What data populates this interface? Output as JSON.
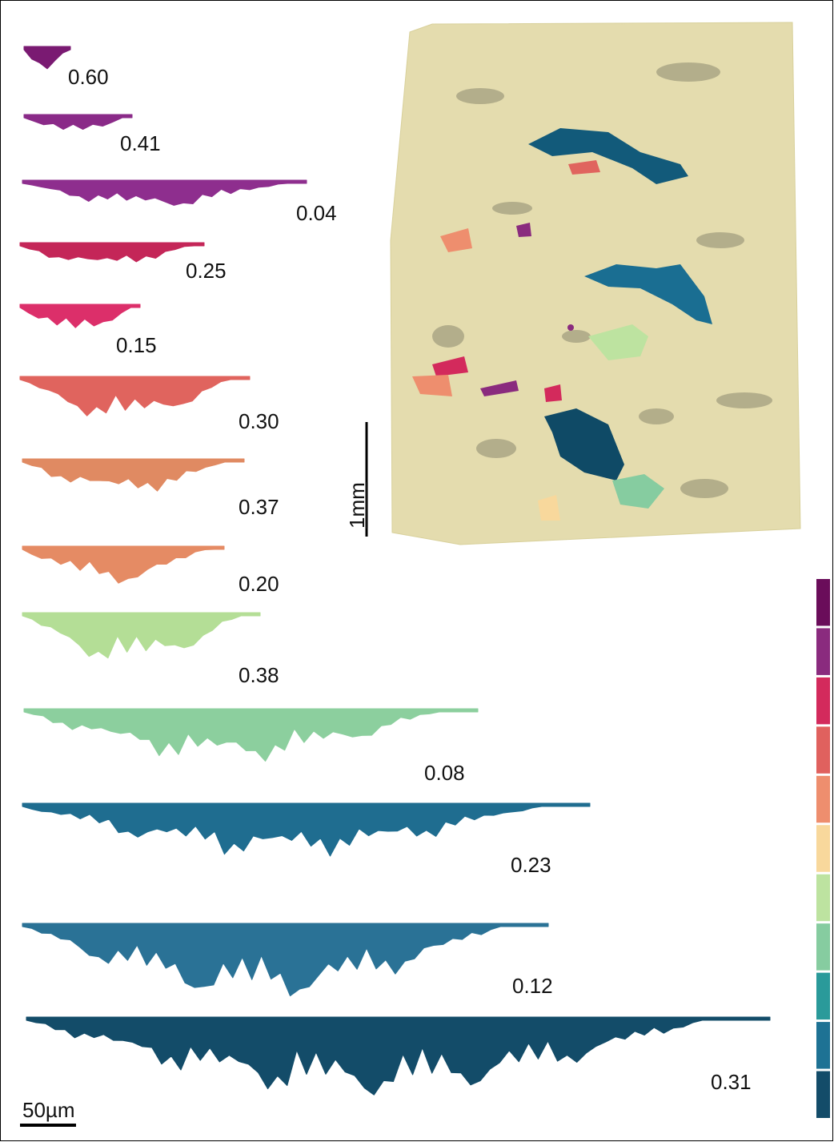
{
  "profiles": [
    {
      "label": "0.60",
      "color": "#7a1a72"
    },
    {
      "label": "0.41",
      "color": "#8a2a88"
    },
    {
      "label": "0.04",
      "color": "#8e2e8e"
    },
    {
      "label": "0.25",
      "color": "#c42658"
    },
    {
      "label": "0.15",
      "color": "#dc2f6a"
    },
    {
      "label": "0.30",
      "color": "#e0645e"
    },
    {
      "label": "0.37",
      "color": "#e08a62"
    },
    {
      "label": "0.20",
      "color": "#e58b64"
    },
    {
      "label": "0.38",
      "color": "#b4de96"
    },
    {
      "label": "0.08",
      "color": "#8ccf9e"
    },
    {
      "label": "0.23",
      "color": "#1f6d90"
    },
    {
      "label": "0.12",
      "color": "#2a7296"
    },
    {
      "label": "0.31",
      "color": "#134c69"
    }
  ],
  "map_scale": "1mm",
  "profile_scale": "50µm",
  "colorbar": [
    "#6a0d5a",
    "#8a2b7e",
    "#d32a5c",
    "#e0615e",
    "#ee8e6e",
    "#f8d89c",
    "#bde3a0",
    "#86cca0",
    "#2a9a9a",
    "#1e7294",
    "#134c69"
  ]
}
